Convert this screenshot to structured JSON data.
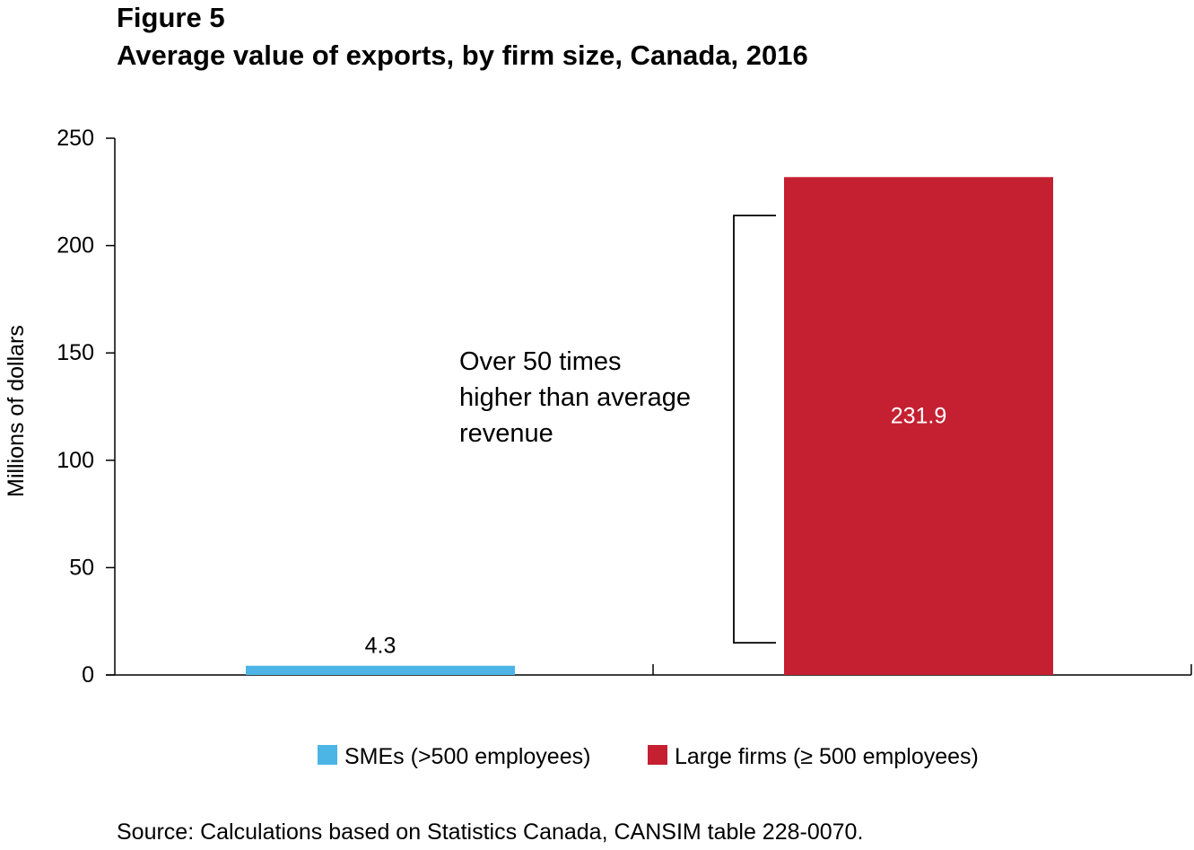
{
  "figure": {
    "label": "Figure 5",
    "title": "Average value of exports, by firm size, Canada, 2016",
    "source": "Source: Calculations based on Statistics Canada, CANSIM table 228-0070."
  },
  "chart_data": {
    "type": "bar",
    "title": "Average value of exports, by firm size, Canada, 2016",
    "xlabel": "",
    "ylabel": "Millions of dollars",
    "ylim": [
      0,
      250
    ],
    "yticks": [
      0,
      50,
      100,
      150,
      200,
      250
    ],
    "grid": false,
    "legend_position": "bottom",
    "series": [
      {
        "name": "SMEs (>500 employees)",
        "color": "#4db4e6",
        "value": 4.3,
        "label": "4.3",
        "label_position": "above"
      },
      {
        "name": "Large firms (≥ 500 employees)",
        "color": "#c42032",
        "value": 231.9,
        "label": "231.9",
        "label_position": "inside"
      }
    ],
    "annotation": {
      "text": [
        "Over 50 times",
        "higher than average",
        "revenue"
      ],
      "bracket": [
        15,
        214
      ]
    }
  }
}
